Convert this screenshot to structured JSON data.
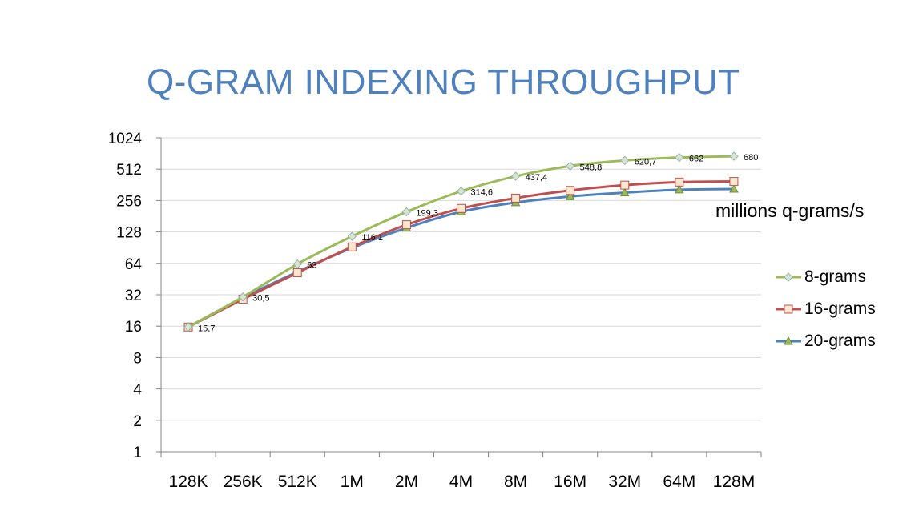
{
  "chart_data": {
    "type": "line",
    "title": "Q-GRAM INDEXING THROUGHPUT",
    "ylabel": "millions q-grams/s",
    "xlabel": "",
    "y_scale": "log2",
    "ylim": [
      1,
      1024
    ],
    "yticks": [
      "1",
      "2",
      "4",
      "8",
      "16",
      "32",
      "64",
      "128",
      "256",
      "512",
      "1024"
    ],
    "ytick_values": [
      1,
      2,
      4,
      8,
      16,
      32,
      64,
      128,
      256,
      512,
      1024
    ],
    "categories": [
      "128K",
      "256K",
      "512K",
      "1M",
      "2M",
      "4M",
      "8M",
      "16M",
      "32M",
      "64M",
      "128M"
    ],
    "grid": "horizontal",
    "legend_position": "right",
    "series": [
      {
        "name": "8-grams",
        "color": "#9bbb59",
        "marker": "diamond",
        "values": [
          15.7,
          30.5,
          63,
          116.1,
          199.3,
          314.6,
          437.4,
          548.8,
          620.7,
          662,
          680
        ],
        "labels": [
          "15,7",
          "30,5",
          "63",
          "116,1",
          "199,3",
          "314,6",
          "437,4",
          "548,8",
          "620,7",
          "662",
          "680"
        ]
      },
      {
        "name": "16-grams",
        "color": "#c0504d",
        "marker": "square",
        "values": [
          15.7,
          29,
          52,
          92,
          150,
          215,
          270,
          320,
          360,
          385,
          390
        ]
      },
      {
        "name": "20-grams",
        "color": "#4f81bd",
        "marker": "triangle",
        "values": [
          15.7,
          30,
          53,
          90,
          140,
          200,
          245,
          280,
          305,
          325,
          330
        ]
      }
    ]
  }
}
